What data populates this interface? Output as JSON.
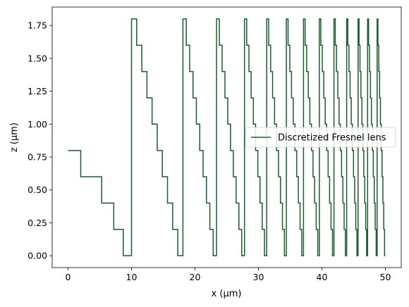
{
  "chart_data": {
    "type": "line",
    "xlabel": "x (μm)",
    "ylabel": "z (μm)",
    "xlim": [
      -2.5,
      52.5
    ],
    "ylim": [
      -0.09,
      1.89
    ],
    "xticks": [
      0,
      10,
      20,
      30,
      40,
      50
    ],
    "yticks": [
      0.0,
      0.25,
      0.5,
      0.75,
      1.0,
      1.25,
      1.5,
      1.75
    ],
    "xtick_labels": [
      "0",
      "10",
      "20",
      "30",
      "40",
      "50"
    ],
    "ytick_labels": [
      "0.00",
      "0.25",
      "0.50",
      "0.75",
      "1.00",
      "1.25",
      "1.50",
      "1.75"
    ],
    "grid": false,
    "legend_position": "center-right",
    "series": [
      {
        "name": "Discretized Fresnel lens",
        "color": "#1a5e30",
        "step_levels": [
          0.8,
          0.6,
          0.4,
          0.2,
          0.0,
          1.8,
          1.6,
          1.4,
          1.2,
          1.0,
          0.8,
          0.6,
          0.4,
          0.2,
          0.0
        ],
        "zone_boundaries": [
          10.0,
          18.1,
          23.4,
          27.8,
          31.3,
          34.4,
          37.1,
          39.6,
          41.9,
          43.9,
          45.7,
          47.2,
          48.7,
          50.0
        ],
        "first_zone": {
          "x": [
            0.0,
            2.0,
            5.3,
            7.2,
            8.7
          ],
          "z": [
            0.8,
            0.6,
            0.4,
            0.2,
            0.0
          ]
        }
      }
    ]
  }
}
